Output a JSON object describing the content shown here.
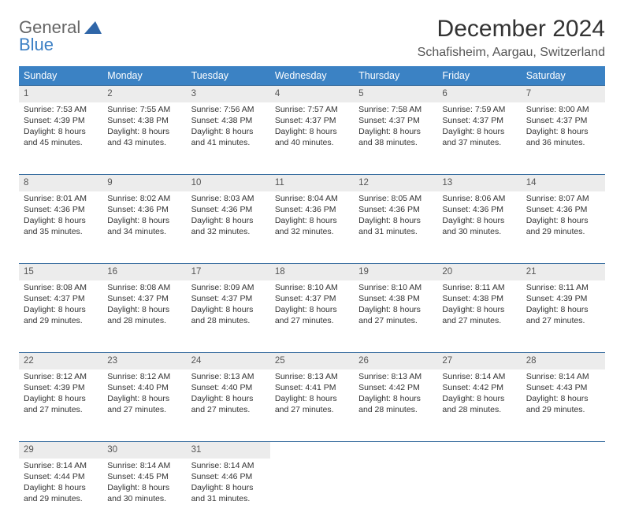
{
  "logo": {
    "word1": "General",
    "word2": "Blue"
  },
  "title": "December 2024",
  "location": "Schafisheim, Aargau, Switzerland",
  "colors": {
    "header_bg": "#3b82c4",
    "header_text": "#ffffff",
    "daynum_bg": "#ececec",
    "rule": "#3b6fa0",
    "logo_gray": "#666666",
    "logo_blue": "#3b7fc4",
    "body_text": "#333333",
    "page_bg": "#ffffff"
  },
  "day_headers": [
    "Sunday",
    "Monday",
    "Tuesday",
    "Wednesday",
    "Thursday",
    "Friday",
    "Saturday"
  ],
  "weeks": [
    [
      {
        "n": "1",
        "sr": "7:53 AM",
        "ss": "4:39 PM",
        "dl": "8 hours and 45 minutes."
      },
      {
        "n": "2",
        "sr": "7:55 AM",
        "ss": "4:38 PM",
        "dl": "8 hours and 43 minutes."
      },
      {
        "n": "3",
        "sr": "7:56 AM",
        "ss": "4:38 PM",
        "dl": "8 hours and 41 minutes."
      },
      {
        "n": "4",
        "sr": "7:57 AM",
        "ss": "4:37 PM",
        "dl": "8 hours and 40 minutes."
      },
      {
        "n": "5",
        "sr": "7:58 AM",
        "ss": "4:37 PM",
        "dl": "8 hours and 38 minutes."
      },
      {
        "n": "6",
        "sr": "7:59 AM",
        "ss": "4:37 PM",
        "dl": "8 hours and 37 minutes."
      },
      {
        "n": "7",
        "sr": "8:00 AM",
        "ss": "4:37 PM",
        "dl": "8 hours and 36 minutes."
      }
    ],
    [
      {
        "n": "8",
        "sr": "8:01 AM",
        "ss": "4:36 PM",
        "dl": "8 hours and 35 minutes."
      },
      {
        "n": "9",
        "sr": "8:02 AM",
        "ss": "4:36 PM",
        "dl": "8 hours and 34 minutes."
      },
      {
        "n": "10",
        "sr": "8:03 AM",
        "ss": "4:36 PM",
        "dl": "8 hours and 32 minutes."
      },
      {
        "n": "11",
        "sr": "8:04 AM",
        "ss": "4:36 PM",
        "dl": "8 hours and 32 minutes."
      },
      {
        "n": "12",
        "sr": "8:05 AM",
        "ss": "4:36 PM",
        "dl": "8 hours and 31 minutes."
      },
      {
        "n": "13",
        "sr": "8:06 AM",
        "ss": "4:36 PM",
        "dl": "8 hours and 30 minutes."
      },
      {
        "n": "14",
        "sr": "8:07 AM",
        "ss": "4:36 PM",
        "dl": "8 hours and 29 minutes."
      }
    ],
    [
      {
        "n": "15",
        "sr": "8:08 AM",
        "ss": "4:37 PM",
        "dl": "8 hours and 29 minutes."
      },
      {
        "n": "16",
        "sr": "8:08 AM",
        "ss": "4:37 PM",
        "dl": "8 hours and 28 minutes."
      },
      {
        "n": "17",
        "sr": "8:09 AM",
        "ss": "4:37 PM",
        "dl": "8 hours and 28 minutes."
      },
      {
        "n": "18",
        "sr": "8:10 AM",
        "ss": "4:37 PM",
        "dl": "8 hours and 27 minutes."
      },
      {
        "n": "19",
        "sr": "8:10 AM",
        "ss": "4:38 PM",
        "dl": "8 hours and 27 minutes."
      },
      {
        "n": "20",
        "sr": "8:11 AM",
        "ss": "4:38 PM",
        "dl": "8 hours and 27 minutes."
      },
      {
        "n": "21",
        "sr": "8:11 AM",
        "ss": "4:39 PM",
        "dl": "8 hours and 27 minutes."
      }
    ],
    [
      {
        "n": "22",
        "sr": "8:12 AM",
        "ss": "4:39 PM",
        "dl": "8 hours and 27 minutes."
      },
      {
        "n": "23",
        "sr": "8:12 AM",
        "ss": "4:40 PM",
        "dl": "8 hours and 27 minutes."
      },
      {
        "n": "24",
        "sr": "8:13 AM",
        "ss": "4:40 PM",
        "dl": "8 hours and 27 minutes."
      },
      {
        "n": "25",
        "sr": "8:13 AM",
        "ss": "4:41 PM",
        "dl": "8 hours and 27 minutes."
      },
      {
        "n": "26",
        "sr": "8:13 AM",
        "ss": "4:42 PM",
        "dl": "8 hours and 28 minutes."
      },
      {
        "n": "27",
        "sr": "8:14 AM",
        "ss": "4:42 PM",
        "dl": "8 hours and 28 minutes."
      },
      {
        "n": "28",
        "sr": "8:14 AM",
        "ss": "4:43 PM",
        "dl": "8 hours and 29 minutes."
      }
    ],
    [
      {
        "n": "29",
        "sr": "8:14 AM",
        "ss": "4:44 PM",
        "dl": "8 hours and 29 minutes."
      },
      {
        "n": "30",
        "sr": "8:14 AM",
        "ss": "4:45 PM",
        "dl": "8 hours and 30 minutes."
      },
      {
        "n": "31",
        "sr": "8:14 AM",
        "ss": "4:46 PM",
        "dl": "8 hours and 31 minutes."
      },
      null,
      null,
      null,
      null
    ]
  ],
  "labels": {
    "sunrise": "Sunrise: ",
    "sunset": "Sunset: ",
    "daylight": "Daylight: "
  }
}
